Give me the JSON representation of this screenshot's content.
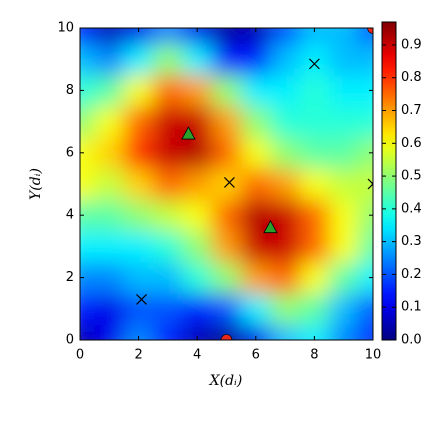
{
  "chart_data": {
    "type": "contour",
    "xlabel": "X(dᵢ)",
    "ylabel": "Y(dᵢ)",
    "colormap": "jet",
    "x": [
      0,
      1,
      2,
      3,
      4,
      5,
      6,
      7,
      8,
      9,
      10
    ],
    "y": [
      0,
      1,
      2,
      3,
      4,
      5,
      6,
      7,
      8,
      9,
      10
    ],
    "z": [
      [
        0.05,
        0.1,
        0.25,
        0.15,
        0.05,
        0.02,
        0.1,
        0.3,
        0.35,
        0.25,
        0.15
      ],
      [
        0.15,
        0.1,
        0.2,
        0.2,
        0.15,
        0.2,
        0.35,
        0.5,
        0.45,
        0.3,
        0.2
      ],
      [
        0.25,
        0.25,
        0.3,
        0.3,
        0.4,
        0.5,
        0.7,
        0.75,
        0.6,
        0.45,
        0.35
      ],
      [
        0.35,
        0.35,
        0.35,
        0.4,
        0.5,
        0.7,
        0.9,
        0.9,
        0.75,
        0.6,
        0.45
      ],
      [
        0.45,
        0.45,
        0.5,
        0.55,
        0.6,
        0.75,
        0.92,
        0.9,
        0.75,
        0.6,
        0.5
      ],
      [
        0.6,
        0.55,
        0.65,
        0.75,
        0.7,
        0.65,
        0.75,
        0.7,
        0.6,
        0.55,
        0.55
      ],
      [
        0.6,
        0.65,
        0.8,
        0.9,
        0.92,
        0.75,
        0.6,
        0.5,
        0.45,
        0.45,
        0.5
      ],
      [
        0.5,
        0.6,
        0.75,
        0.9,
        0.9,
        0.7,
        0.5,
        0.4,
        0.4,
        0.4,
        0.4
      ],
      [
        0.4,
        0.45,
        0.6,
        0.75,
        0.7,
        0.5,
        0.35,
        0.35,
        0.4,
        0.35,
        0.35
      ],
      [
        0.3,
        0.25,
        0.35,
        0.5,
        0.35,
        0.15,
        0.15,
        0.3,
        0.35,
        0.3,
        0.3
      ],
      [
        0.15,
        0.05,
        0.1,
        0.25,
        0.1,
        0.03,
        0.05,
        0.2,
        0.3,
        0.3,
        0.2
      ]
    ],
    "markers": [
      {
        "shape": "triangle",
        "color": "#2ca02c",
        "x": [
          3.7,
          6.5
        ],
        "y": [
          6.6,
          3.6
        ]
      },
      {
        "shape": "cross",
        "color": "#000000",
        "x": [
          2.1,
          5.1,
          8.0,
          10.0
        ],
        "y": [
          1.3,
          5.05,
          8.85,
          5.0
        ]
      },
      {
        "shape": "circle",
        "color": "#e8281e",
        "x": [
          5.0,
          10.0
        ],
        "y": [
          0.0,
          10.0
        ]
      }
    ],
    "xlim": [
      0,
      10
    ],
    "ylim": [
      0,
      10
    ],
    "xticks": [
      0,
      2,
      4,
      6,
      8,
      10
    ],
    "yticks": [
      0,
      2,
      4,
      6,
      8,
      10
    ],
    "clim": [
      0,
      0.97
    ],
    "cticks": [
      {
        "value": 0,
        "label": "0.0"
      },
      {
        "value": 0.1,
        "label": "0.1"
      },
      {
        "value": 0.2,
        "label": "0.2"
      },
      {
        "value": 0.3,
        "label": "0.3"
      },
      {
        "value": 0.4,
        "label": "0.4"
      },
      {
        "value": 0.5,
        "label": "0.5"
      },
      {
        "value": 0.6,
        "label": "0.6"
      },
      {
        "value": 0.7,
        "label": "0.7"
      },
      {
        "value": 0.8,
        "label": "0.8"
      },
      {
        "value": 0.9,
        "label": "0.9"
      }
    ]
  }
}
